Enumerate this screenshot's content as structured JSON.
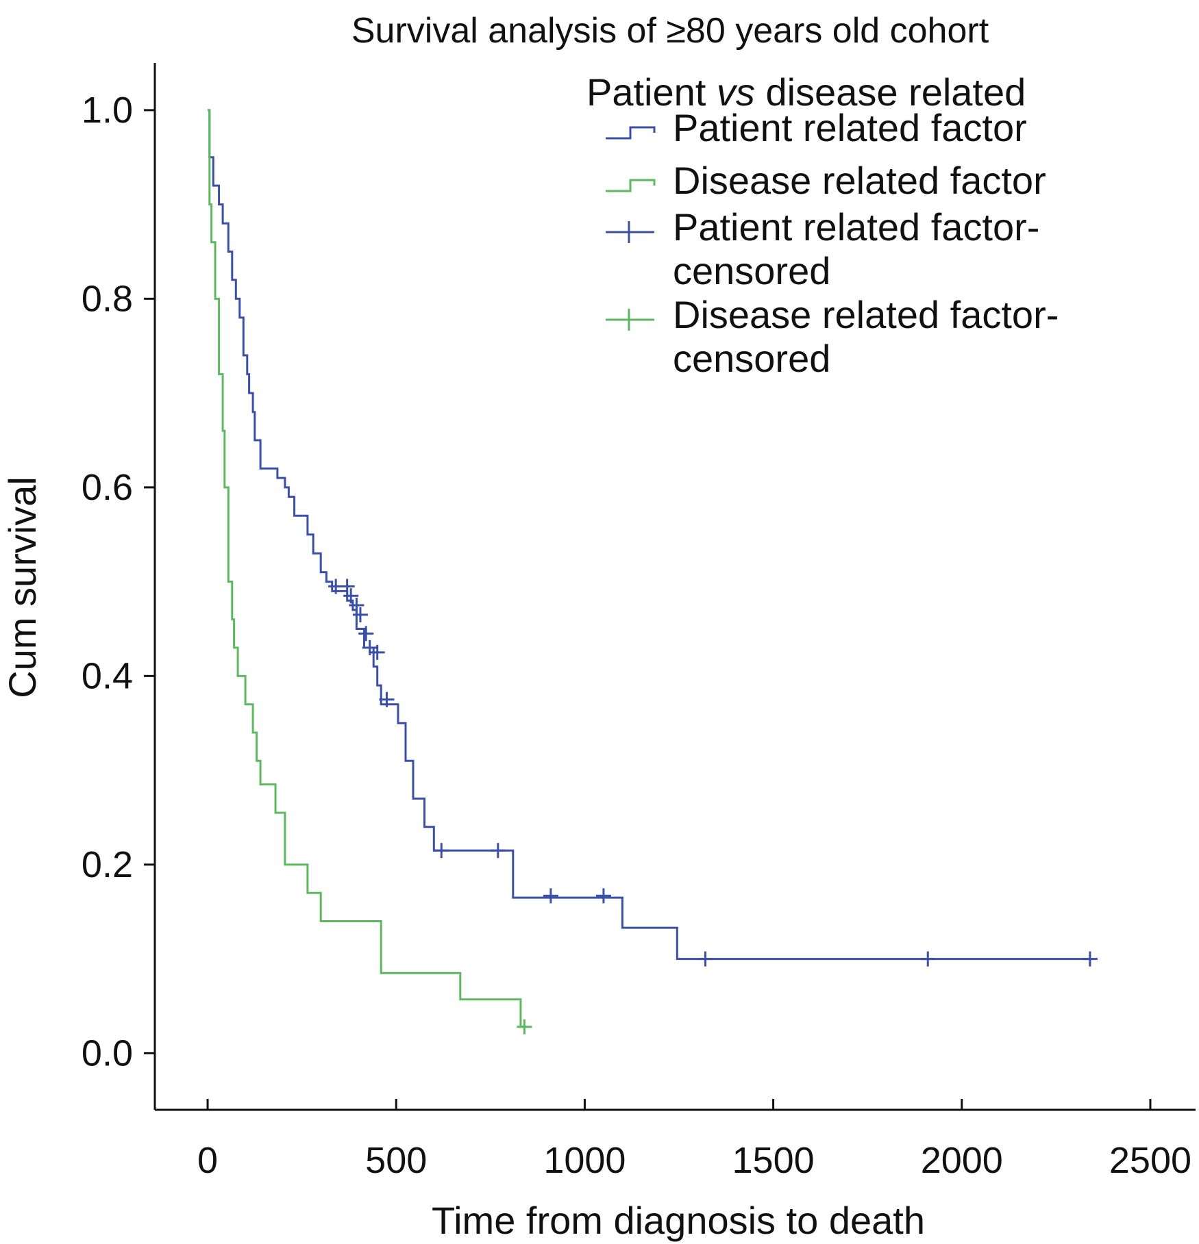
{
  "chart_data": {
    "type": "line",
    "subtype": "kaplan-meier",
    "title": "Survival analysis of ≥80 years old cohort",
    "xlabel": "Time from diagnosis to death",
    "ylabel": "Cum survival",
    "xlim": [
      -140,
      2620
    ],
    "ylim": [
      -0.06,
      1.05
    ],
    "xticks": [
      0,
      500,
      1000,
      1500,
      2000,
      2500
    ],
    "xtick_labels": [
      "0",
      "500",
      "1000",
      "1500",
      "2000",
      "2500"
    ],
    "yticks": [
      0.0,
      0.2,
      0.4,
      0.6,
      0.8,
      1.0
    ],
    "ytick_labels": [
      "0.0",
      "0.2",
      "0.4",
      "0.6",
      "0.8",
      "1.0"
    ],
    "grid": false,
    "legend": {
      "title_parts": [
        "Patient ",
        "vs",
        " disease related"
      ],
      "position": "top-right",
      "entries": [
        {
          "label_lines": [
            "Patient related factor"
          ],
          "kind": "step",
          "series": 0
        },
        {
          "label_lines": [
            "Disease related factor"
          ],
          "kind": "step",
          "series": 1
        },
        {
          "label_lines": [
            "Patient related factor-",
            "censored"
          ],
          "kind": "censor",
          "series": 0
        },
        {
          "label_lines": [
            "Disease related factor-",
            "censored"
          ],
          "kind": "censor",
          "series": 1
        }
      ]
    },
    "series": [
      {
        "name": "Patient related factor",
        "color": "#3a4fa8",
        "steps": [
          [
            0,
            1.0
          ],
          [
            5,
            0.95
          ],
          [
            15,
            0.92
          ],
          [
            30,
            0.9
          ],
          [
            40,
            0.88
          ],
          [
            55,
            0.85
          ],
          [
            65,
            0.82
          ],
          [
            75,
            0.8
          ],
          [
            85,
            0.78
          ],
          [
            95,
            0.74
          ],
          [
            105,
            0.72
          ],
          [
            110,
            0.7
          ],
          [
            120,
            0.68
          ],
          [
            125,
            0.65
          ],
          [
            140,
            0.62
          ],
          [
            170,
            0.62
          ],
          [
            185,
            0.61
          ],
          [
            205,
            0.6
          ],
          [
            215,
            0.59
          ],
          [
            230,
            0.57
          ],
          [
            265,
            0.55
          ],
          [
            280,
            0.53
          ],
          [
            300,
            0.51
          ],
          [
            315,
            0.5
          ],
          [
            330,
            0.49
          ],
          [
            370,
            0.48
          ],
          [
            385,
            0.47
          ],
          [
            395,
            0.45
          ],
          [
            415,
            0.43
          ],
          [
            440,
            0.41
          ],
          [
            450,
            0.39
          ],
          [
            460,
            0.37
          ],
          [
            505,
            0.35
          ],
          [
            525,
            0.31
          ],
          [
            545,
            0.27
          ],
          [
            575,
            0.24
          ],
          [
            600,
            0.215
          ],
          [
            810,
            0.165
          ],
          [
            1100,
            0.133
          ],
          [
            1245,
            0.1
          ],
          [
            2350,
            0.1
          ]
        ],
        "censored": [
          [
            340,
            0.495
          ],
          [
            370,
            0.495
          ],
          [
            380,
            0.485
          ],
          [
            395,
            0.475
          ],
          [
            405,
            0.465
          ],
          [
            420,
            0.445
          ],
          [
            430,
            0.43
          ],
          [
            450,
            0.425
          ],
          [
            475,
            0.375
          ],
          [
            620,
            0.215
          ],
          [
            770,
            0.215
          ],
          [
            910,
            0.167
          ],
          [
            1050,
            0.167
          ],
          [
            1320,
            0.1
          ],
          [
            1910,
            0.1
          ],
          [
            2340,
            0.1
          ]
        ]
      },
      {
        "name": "Disease related factor",
        "color": "#5db85f",
        "steps": [
          [
            0,
            1.0
          ],
          [
            5,
            0.9
          ],
          [
            10,
            0.86
          ],
          [
            20,
            0.8
          ],
          [
            30,
            0.72
          ],
          [
            40,
            0.66
          ],
          [
            45,
            0.6
          ],
          [
            55,
            0.5
          ],
          [
            65,
            0.46
          ],
          [
            70,
            0.43
          ],
          [
            80,
            0.4
          ],
          [
            100,
            0.37
          ],
          [
            120,
            0.34
          ],
          [
            130,
            0.31
          ],
          [
            140,
            0.285
          ],
          [
            180,
            0.255
          ],
          [
            205,
            0.2
          ],
          [
            265,
            0.17
          ],
          [
            300,
            0.14
          ],
          [
            460,
            0.085
          ],
          [
            670,
            0.057
          ],
          [
            830,
            0.028
          ],
          [
            845,
            0.028
          ]
        ],
        "censored": [
          [
            840,
            0.028
          ]
        ]
      }
    ]
  }
}
